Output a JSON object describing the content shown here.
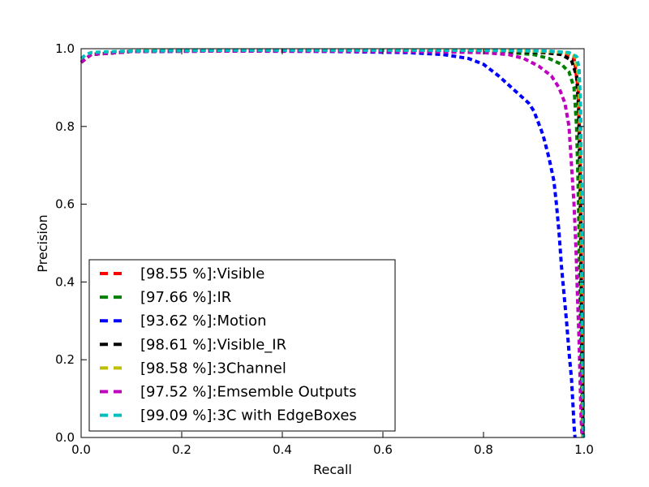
{
  "chart_data": {
    "type": "line",
    "title": "",
    "xlabel": "Recall",
    "ylabel": "Precision",
    "xlim": [
      0.0,
      1.0
    ],
    "ylim": [
      0.0,
      1.0
    ],
    "xticks": [
      "0.0",
      "0.2",
      "0.4",
      "0.6",
      "0.8",
      "1.0"
    ],
    "yticks": [
      "0.0",
      "0.2",
      "0.4",
      "0.6",
      "0.8",
      "1.0"
    ],
    "grid": false,
    "legend_position": "lower-left",
    "line_style": "dashed",
    "series": [
      {
        "name": "[98.55 %]:Visible",
        "color": "#ff0000",
        "x": [
          0.0,
          0.02,
          0.1,
          0.3,
          0.5,
          0.7,
          0.85,
          0.93,
          0.965,
          0.98,
          0.988,
          0.992,
          0.994,
          0.995,
          0.996,
          0.997,
          0.998
        ],
        "y": [
          0.965,
          0.985,
          0.993,
          0.995,
          0.995,
          0.995,
          0.993,
          0.99,
          0.985,
          0.975,
          0.9,
          0.75,
          0.55,
          0.35,
          0.15,
          0.05,
          0.0
        ]
      },
      {
        "name": "[97.66 %]:IR",
        "color": "#008000",
        "x": [
          0.0,
          0.02,
          0.1,
          0.3,
          0.5,
          0.7,
          0.85,
          0.9,
          0.93,
          0.955,
          0.97,
          0.98,
          0.985,
          0.988,
          0.99,
          0.992,
          0.994,
          0.996,
          0.998
        ],
        "y": [
          0.965,
          0.985,
          0.993,
          0.994,
          0.994,
          0.992,
          0.99,
          0.985,
          0.975,
          0.96,
          0.94,
          0.9,
          0.8,
          0.65,
          0.5,
          0.35,
          0.2,
          0.05,
          0.0
        ]
      },
      {
        "name": "[93.62 %]:Motion",
        "color": "#0000ff",
        "x": [
          0.0,
          0.02,
          0.1,
          0.3,
          0.5,
          0.65,
          0.72,
          0.77,
          0.8,
          0.83,
          0.86,
          0.89,
          0.9,
          0.915,
          0.92,
          0.93,
          0.94,
          0.945,
          0.95,
          0.955,
          0.96,
          0.965,
          0.97,
          0.975,
          0.978,
          0.98,
          0.982
        ],
        "y": [
          0.965,
          0.985,
          0.993,
          0.994,
          0.993,
          0.99,
          0.985,
          0.975,
          0.96,
          0.93,
          0.895,
          0.86,
          0.84,
          0.79,
          0.77,
          0.72,
          0.66,
          0.6,
          0.53,
          0.44,
          0.37,
          0.3,
          0.22,
          0.15,
          0.08,
          0.03,
          0.0
        ]
      },
      {
        "name": "[98.61 %]:Visible_IR",
        "color": "#000000",
        "x": [
          0.0,
          0.02,
          0.1,
          0.3,
          0.5,
          0.7,
          0.85,
          0.92,
          0.955,
          0.975,
          0.985,
          0.989,
          0.992,
          0.994,
          0.996,
          0.998
        ],
        "y": [
          0.965,
          0.985,
          0.993,
          0.995,
          0.995,
          0.995,
          0.993,
          0.99,
          0.985,
          0.97,
          0.93,
          0.85,
          0.65,
          0.4,
          0.15,
          0.0
        ]
      },
      {
        "name": "[98.58 %]:3Channel",
        "color": "#bfbf00",
        "x": [
          0.0,
          0.02,
          0.1,
          0.3,
          0.5,
          0.7,
          0.85,
          0.93,
          0.965,
          0.982,
          0.989,
          0.992,
          0.994,
          0.996,
          0.997,
          0.998
        ],
        "y": [
          0.965,
          0.985,
          0.994,
          0.996,
          0.996,
          0.996,
          0.995,
          0.993,
          0.99,
          0.98,
          0.93,
          0.8,
          0.55,
          0.3,
          0.1,
          0.0
        ]
      },
      {
        "name": "[97.52 %]:Emsemble Outputs",
        "color": "#bf00bf",
        "x": [
          0.0,
          0.02,
          0.1,
          0.3,
          0.5,
          0.7,
          0.8,
          0.85,
          0.88,
          0.91,
          0.935,
          0.95,
          0.962,
          0.97,
          0.975,
          0.98,
          0.984,
          0.987,
          0.99,
          0.992,
          0.994,
          0.996
        ],
        "y": [
          0.965,
          0.985,
          0.993,
          0.994,
          0.994,
          0.992,
          0.99,
          0.985,
          0.975,
          0.955,
          0.93,
          0.9,
          0.86,
          0.8,
          0.7,
          0.6,
          0.48,
          0.36,
          0.25,
          0.15,
          0.05,
          0.0
        ]
      },
      {
        "name": "[99.09 %]:3C with EdgeBoxes",
        "color": "#00bfbf",
        "x": [
          0.0,
          0.01,
          0.02,
          0.05,
          0.1,
          0.3,
          0.5,
          0.7,
          0.85,
          0.93,
          0.97,
          0.985,
          0.99,
          0.993,
          0.995,
          0.996,
          0.997,
          0.998,
          0.999
        ],
        "y": [
          0.975,
          0.985,
          0.99,
          0.992,
          0.994,
          0.996,
          0.996,
          0.996,
          0.995,
          0.994,
          0.99,
          0.98,
          0.95,
          0.85,
          0.65,
          0.45,
          0.25,
          0.08,
          0.0
        ]
      }
    ]
  }
}
